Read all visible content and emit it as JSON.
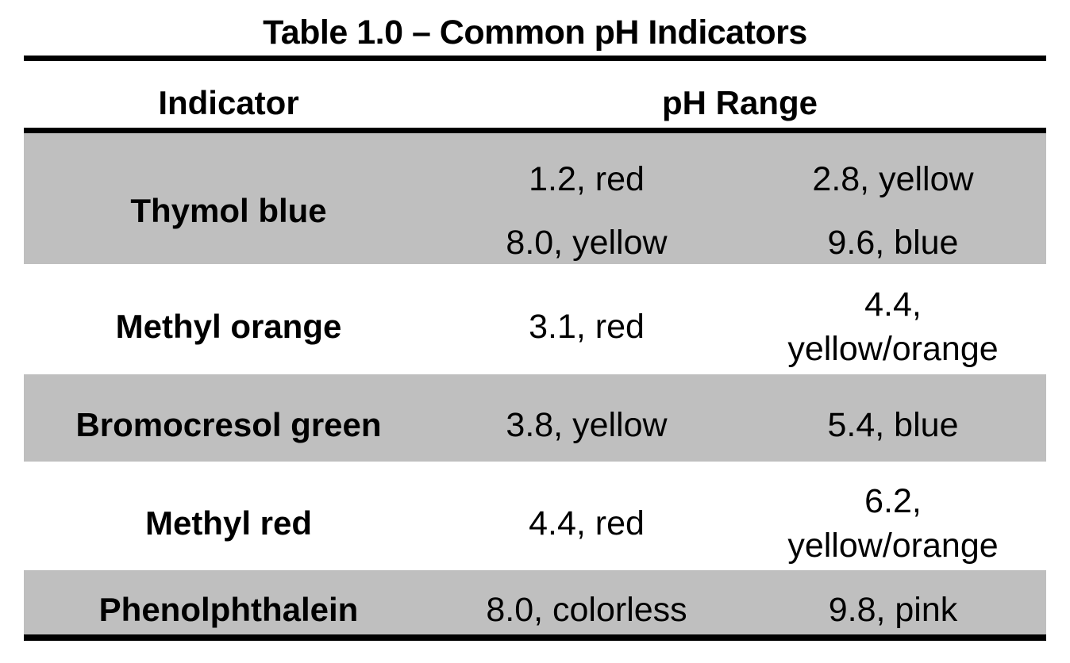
{
  "title": "Table 1.0 – Common pH Indicators",
  "columns": {
    "indicator": "Indicator",
    "ph_range": "pH Range"
  },
  "rows": [
    {
      "indicator": "Thymol blue",
      "range_low": "1.2, red\n8.0, yellow",
      "range_high": "2.8, yellow\n9.6, blue"
    },
    {
      "indicator": "Methyl orange",
      "range_low": "3.1, red",
      "range_high": "4.4,\nyellow/orange"
    },
    {
      "indicator": "Bromocresol green",
      "range_low": "3.8, yellow",
      "range_high": "5.4, blue"
    },
    {
      "indicator": "Methyl red",
      "range_low": "4.4, red",
      "range_high": "6.2,\nyellow/orange"
    },
    {
      "indicator": "Phenolphthalein",
      "range_low": "8.0, colorless",
      "range_high": "9.8, pink"
    }
  ],
  "colors": {
    "row_shade": "#bfbfbf",
    "rule_color": "#000000",
    "text_color": "#000000",
    "page_background": "#ffffff"
  }
}
